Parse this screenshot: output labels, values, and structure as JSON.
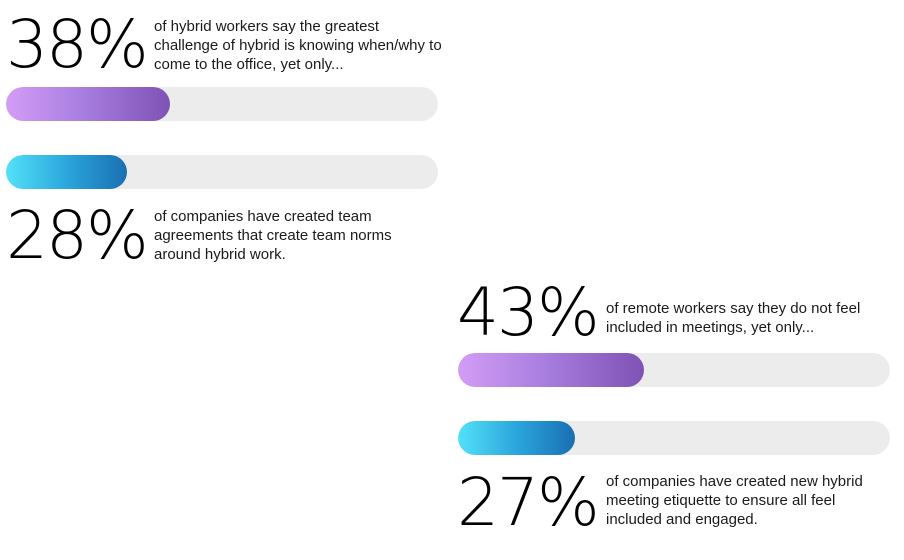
{
  "chart_data": {
    "type": "bar",
    "colors": {
      "purple_start": "#d39df5",
      "purple_end": "#7f52b5",
      "blue_start": "#53e1f8",
      "blue_end": "#1a6fb2",
      "track": "#ececec"
    },
    "groups": [
      {
        "top": {
          "value": 38,
          "label": "38%",
          "color": "purple",
          "text": "of hybrid workers say the greatest challenge of hybrid is knowing when/why to come to the office, yet only..."
        },
        "bottom": {
          "value": 28,
          "label": "28%",
          "color": "blue",
          "text": "of companies have created team agreements that create team norms around hybrid work."
        }
      },
      {
        "top": {
          "value": 43,
          "label": "43%",
          "color": "purple",
          "text": "of remote workers say they do not feel included in meetings, yet only..."
        },
        "bottom": {
          "value": 27,
          "label": "27%",
          "color": "blue",
          "text": "of companies have created new hybrid meeting etiquette to ensure all feel included and engaged."
        }
      }
    ]
  }
}
